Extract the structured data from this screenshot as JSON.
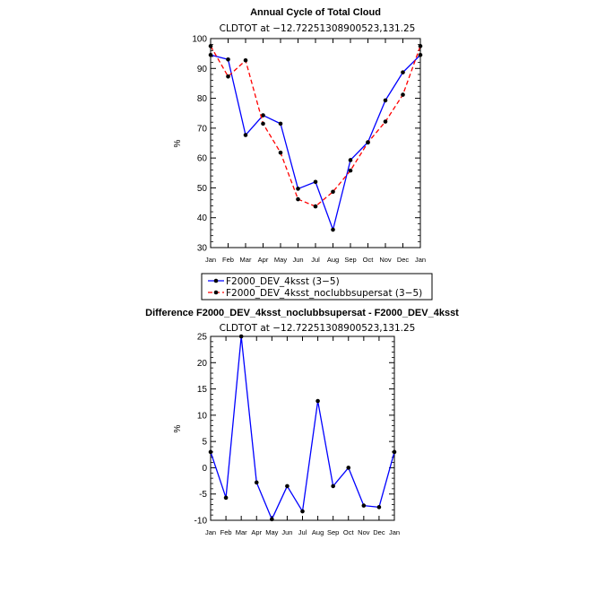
{
  "chart_data": [
    {
      "type": "line",
      "title": "Annual Cycle of Total Cloud",
      "subtitle": "CLDTOT at −12.72251308900523,131.25",
      "ylabel": "%",
      "ylim": [
        30,
        100
      ],
      "yticks": [
        30,
        40,
        50,
        60,
        70,
        80,
        90,
        100
      ],
      "categories": [
        "Jan",
        "Feb",
        "Mar",
        "Apr",
        "May",
        "Jun",
        "Jul",
        "Aug",
        "Sep",
        "Oct",
        "Nov",
        "Dec",
        "Jan"
      ],
      "grid": false,
      "legend_position": "bottom",
      "series": [
        {
          "name": "F2000_DEV_4ksst (3−5)",
          "color": "#0000ff",
          "dash": "solid",
          "values": [
            94.5,
            93,
            67.7,
            74.3,
            71.5,
            49.7,
            52,
            36,
            59.3,
            65.3,
            79.3,
            88.7,
            94.5
          ]
        },
        {
          "name": "F2000_DEV_4ksst_noclubbsupersat (3−5)",
          "color": "#ff0000",
          "dash": "dashed",
          "values": [
            97.5,
            87.3,
            92.7,
            71.5,
            61.8,
            46.2,
            43.8,
            48.7,
            55.8,
            65.2,
            72.2,
            81.2,
            97.5
          ]
        }
      ]
    },
    {
      "type": "line",
      "title": "Difference F2000_DEV_4ksst_noclubbsupersat - F2000_DEV_4ksst",
      "subtitle": "CLDTOT at −12.72251308900523,131.25",
      "ylabel": "%",
      "ylim": [
        -10,
        25
      ],
      "yticks": [
        -10,
        -5,
        0,
        5,
        10,
        15,
        20,
        25
      ],
      "categories": [
        "Jan",
        "Feb",
        "Mar",
        "Apr",
        "May",
        "Jun",
        "Jul",
        "Aug",
        "Sep",
        "Oct",
        "Nov",
        "Dec",
        "Jan"
      ],
      "grid": false,
      "series": [
        {
          "color": "#0000ff",
          "dash": "solid",
          "values": [
            3,
            -5.7,
            25,
            -2.8,
            -9.8,
            -3.5,
            -8.3,
            12.7,
            -3.5,
            0,
            -7.2,
            -7.5,
            3
          ]
        }
      ]
    }
  ]
}
